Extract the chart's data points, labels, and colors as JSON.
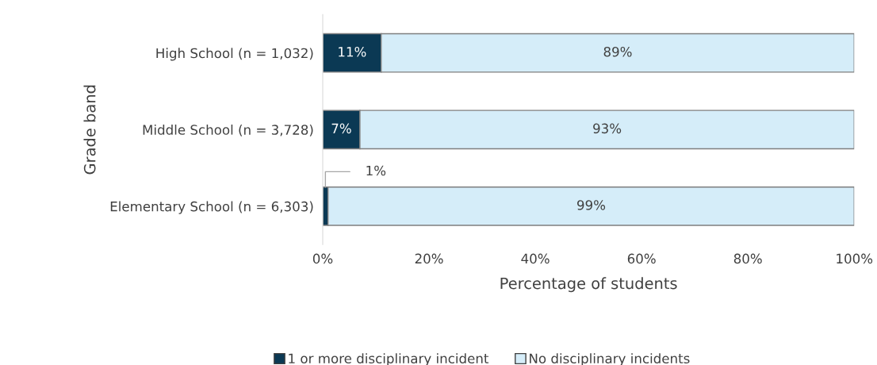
{
  "chart_data": {
    "type": "bar",
    "orientation": "horizontal",
    "stacked": true,
    "categories": [
      "High School (n = 1,032)",
      "Middle School (n = 3,728)",
      "Elementary School (n = 6,303)"
    ],
    "series": [
      {
        "name": "1 or more disciplinary incident",
        "color": "#0b3954",
        "values": [
          11,
          7,
          1
        ],
        "value_labels": [
          "11%",
          "7%",
          "1%"
        ]
      },
      {
        "name": "No disciplinary incidents",
        "color": "#d5edf9",
        "values": [
          89,
          93,
          99
        ],
        "value_labels": [
          "89%",
          "93%",
          "99%"
        ]
      }
    ],
    "xlim": [
      0,
      100
    ],
    "xticks": [
      {
        "value": 0,
        "label": "0%"
      },
      {
        "value": 20,
        "label": "20%"
      },
      {
        "value": 40,
        "label": "40%"
      },
      {
        "value": 60,
        "label": "60%"
      },
      {
        "value": 80,
        "label": "80%"
      },
      {
        "value": 100,
        "label": "100%"
      }
    ],
    "xlabel": "Percentage of students",
    "ylabel": "Grade band",
    "grid": false,
    "legend": "bottom"
  }
}
